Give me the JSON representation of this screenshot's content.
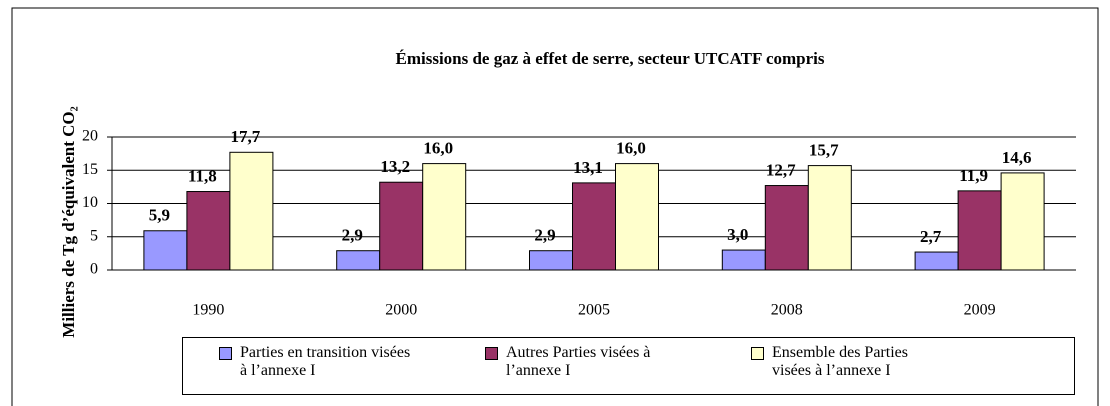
{
  "chart_data": {
    "type": "bar",
    "title": "Émissions de gaz à effet de serre, secteur UTCATF compris",
    "y_label": "Milliers de Tg d’équivalent CO₂",
    "categories": [
      "1990",
      "2000",
      "2005",
      "2008",
      "2009"
    ],
    "series": [
      {
        "name": "Parties en transition visées à l’annexe I",
        "color": "#9999ff",
        "values": [
          5.9,
          2.9,
          2.9,
          3.0,
          2.7
        ],
        "value_labels": [
          "5,9",
          "2,9",
          "2,9",
          "3,0",
          "2,7"
        ]
      },
      {
        "name": "Autres Parties visées à l’annexe I",
        "color": "#993366",
        "values": [
          11.8,
          13.2,
          13.1,
          12.7,
          11.9
        ],
        "value_labels": [
          "11,8",
          "13,2",
          "13,1",
          "12,7",
          "11,9"
        ]
      },
      {
        "name": "Ensemble des Parties visées à l’annexe I",
        "color": "#ffffcc",
        "values": [
          17.7,
          16.0,
          16.0,
          15.7,
          14.6
        ],
        "value_labels": [
          "17,7",
          "16,0",
          "16,0",
          "15,7",
          "14,6"
        ]
      }
    ],
    "ylim": [
      0,
      20
    ],
    "yticks": [
      0,
      5,
      10,
      15,
      20
    ],
    "grid": true
  }
}
